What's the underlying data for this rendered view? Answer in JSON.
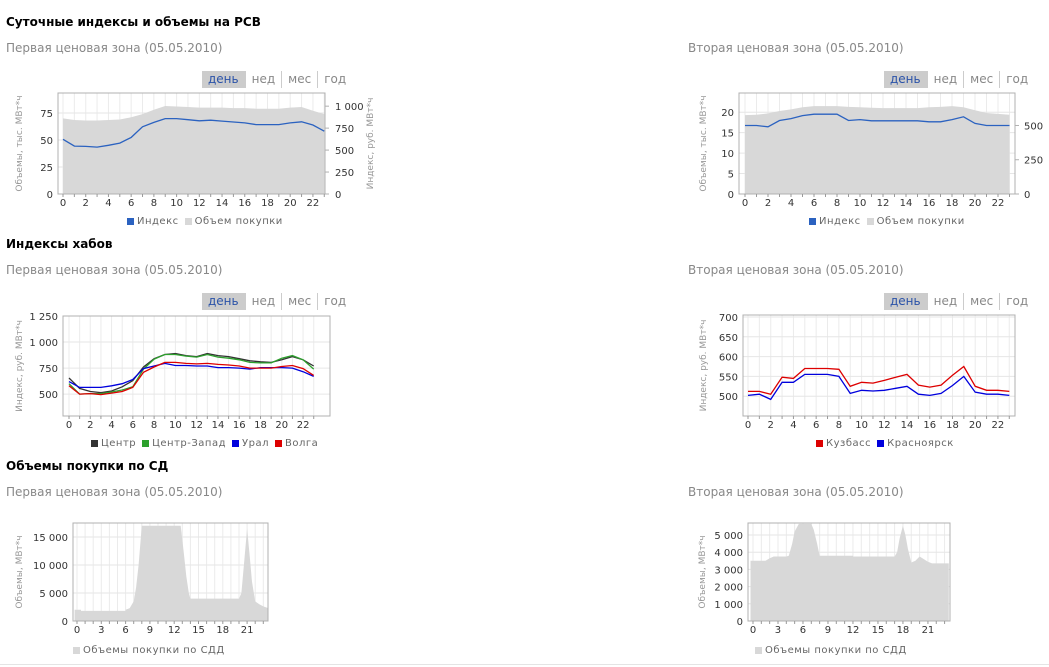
{
  "sections": [
    {
      "title": "Суточные индексы и объемы на РСВ"
    },
    {
      "title": "Индексы хабов"
    },
    {
      "title": "Объемы покупки по СД"
    }
  ],
  "zone1": "Первая ценовая зона (05.05.2010)",
  "zone2": "Вторая ценовая зона (05.05.2010)",
  "tabs": [
    "день",
    "нед",
    "мес",
    "год"
  ],
  "colors": {
    "volume": "#d8d8d8",
    "index": "#2b62c0",
    "center": "#333333",
    "nw": "#2ca02c",
    "ural": "#0000dd",
    "volga": "#dd0000",
    "kuzbass": "#dd0000",
    "krasnoyarsk": "#0000dd"
  },
  "chart_data": [
    {
      "type": "area+line",
      "title": "Первая ценовая зона (05.05.2010)",
      "ylabel": "Объемы, тыс. МВт*ч",
      "y2label": "Индекс, руб. МВт*ч",
      "ylim": [
        0,
        93.5
      ],
      "y2lim": [
        0,
        1150
      ],
      "yticks": [
        0,
        25,
        50,
        75
      ],
      "yticklabels": [
        "0",
        "25",
        "50",
        "75"
      ],
      "y2ticks": [
        0,
        250,
        500,
        750,
        1000
      ],
      "y2ticklabels": [
        "0",
        "250",
        "500",
        "750",
        "1 000"
      ],
      "xticks": [
        0,
        2,
        4,
        6,
        8,
        10,
        12,
        14,
        16,
        18,
        20,
        22
      ],
      "series": [
        {
          "name": "Объем покупки",
          "kind": "area",
          "axis": "y",
          "color": "#d8d8d8",
          "x": [
            0,
            1,
            2,
            3,
            4,
            5,
            6,
            7,
            8,
            9,
            10,
            11,
            12,
            13,
            14,
            15,
            16,
            17,
            18,
            19,
            20,
            21,
            22,
            23
          ],
          "values": [
            70,
            68.5,
            68,
            68,
            68.5,
            69,
            71,
            74,
            78,
            81.5,
            81,
            80.5,
            80,
            80,
            80,
            79.5,
            79.5,
            79,
            79,
            79,
            80,
            80.5,
            77,
            74
          ]
        },
        {
          "name": "Индекс",
          "kind": "line",
          "axis": "y2",
          "color": "#2b62c0",
          "x": [
            0,
            1,
            2,
            3,
            4,
            5,
            6,
            7,
            8,
            9,
            10,
            11,
            12,
            13,
            14,
            15,
            16,
            17,
            18,
            19,
            20,
            21,
            22,
            23
          ],
          "values": [
            623,
            545,
            542,
            534,
            555,
            580,
            644,
            765,
            815,
            858,
            858,
            846,
            833,
            840,
            830,
            820,
            810,
            790,
            790,
            790,
            810,
            822,
            786,
            715
          ]
        }
      ],
      "legend": [
        "Индекс",
        "Объем покупки"
      ]
    },
    {
      "type": "area+line",
      "title": "Вторая ценовая зона (05.05.2010)",
      "ylabel": "Объемы, тыс. МВт*ч",
      "ylim": [
        0,
        24.7
      ],
      "y2lim": [
        0,
        737
      ],
      "yticks": [
        0,
        5,
        10,
        15,
        20
      ],
      "yticklabels": [
        "0",
        "5",
        "10",
        "15",
        "20"
      ],
      "y2ticks": [
        0,
        250,
        500
      ],
      "y2ticklabels": [
        "0",
        "250",
        "500"
      ],
      "xticks": [
        0,
        2,
        4,
        6,
        8,
        10,
        12,
        14,
        16,
        18,
        20,
        22
      ],
      "series": [
        {
          "name": "Объем покупки",
          "kind": "area",
          "axis": "y",
          "color": "#d8d8d8",
          "x": [
            0,
            1,
            2,
            3,
            4,
            5,
            6,
            7,
            8,
            9,
            10,
            11,
            12,
            13,
            14,
            15,
            16,
            17,
            18,
            19,
            20,
            21,
            22,
            23
          ],
          "values": [
            19.3,
            19.4,
            19.7,
            20.3,
            20.7,
            21.2,
            21.5,
            21.5,
            21.5,
            21.3,
            21.2,
            21.1,
            21,
            21,
            21,
            21,
            21.2,
            21.3,
            21.5,
            21.2,
            20.5,
            19.8,
            19.6,
            19.4
          ]
        },
        {
          "name": "Индекс",
          "kind": "line",
          "axis": "y2",
          "color": "#2b62c0",
          "x": [
            0,
            1,
            2,
            3,
            4,
            5,
            6,
            7,
            8,
            9,
            10,
            11,
            12,
            13,
            14,
            15,
            16,
            17,
            18,
            19,
            20,
            21,
            22,
            23
          ],
          "values": [
            500,
            500,
            490,
            536,
            550,
            572,
            582,
            582,
            582,
            536,
            543,
            534,
            534,
            534,
            534,
            534,
            527,
            527,
            543,
            563,
            515,
            500,
            500,
            500
          ]
        }
      ],
      "legend": [
        "Индекс",
        "Объем покупки"
      ]
    },
    {
      "type": "line",
      "title": "Первая ценовая зона (05.05.2010)",
      "ylabel": "Индекс, руб. МВт*ч",
      "ylim": [
        290,
        1250
      ],
      "yticks": [
        500,
        750,
        1000,
        1250
      ],
      "yticklabels": [
        "500",
        "750",
        "1 000",
        "1 250"
      ],
      "xticks": [
        0,
        2,
        4,
        6,
        8,
        10,
        12,
        14,
        16,
        18,
        20,
        22
      ],
      "series": [
        {
          "name": "Центр",
          "kind": "line",
          "color": "#333333",
          "x": [
            0,
            1,
            2,
            3,
            4,
            5,
            6,
            7,
            8,
            9,
            10,
            11,
            12,
            13,
            14,
            15,
            16,
            17,
            18,
            19,
            20,
            21,
            22,
            23
          ],
          "values": [
            655,
            555,
            525,
            515,
            530,
            570,
            630,
            760,
            840,
            880,
            890,
            870,
            860,
            890,
            870,
            860,
            840,
            820,
            810,
            805,
            830,
            860,
            830,
            770
          ]
        },
        {
          "name": "Центр-Запад",
          "kind": "line",
          "color": "#2ca02c",
          "x": [
            0,
            1,
            2,
            3,
            4,
            5,
            6,
            7,
            8,
            9,
            10,
            11,
            12,
            13,
            14,
            15,
            16,
            17,
            18,
            19,
            20,
            21,
            22,
            23
          ],
          "values": [
            600,
            500,
            505,
            505,
            520,
            540,
            570,
            740,
            835,
            880,
            880,
            865,
            855,
            880,
            855,
            845,
            830,
            805,
            800,
            800,
            845,
            870,
            830,
            740
          ]
        },
        {
          "name": "Урал",
          "kind": "line",
          "color": "#0000dd",
          "x": [
            0,
            1,
            2,
            3,
            4,
            5,
            6,
            7,
            8,
            9,
            10,
            11,
            12,
            13,
            14,
            15,
            16,
            17,
            18,
            19,
            20,
            21,
            22,
            23
          ],
          "values": [
            620,
            565,
            565,
            565,
            580,
            600,
            640,
            745,
            770,
            795,
            775,
            775,
            770,
            770,
            755,
            755,
            750,
            740,
            755,
            755,
            755,
            750,
            715,
            670
          ]
        },
        {
          "name": "Волга",
          "kind": "line",
          "color": "#dd0000",
          "x": [
            0,
            1,
            2,
            3,
            4,
            5,
            6,
            7,
            8,
            9,
            10,
            11,
            12,
            13,
            14,
            15,
            16,
            17,
            18,
            19,
            20,
            21,
            22,
            23
          ],
          "values": [
            580,
            500,
            505,
            495,
            510,
            525,
            565,
            710,
            760,
            805,
            805,
            795,
            790,
            795,
            785,
            780,
            770,
            750,
            750,
            750,
            765,
            775,
            745,
            680
          ]
        }
      ],
      "legend": [
        "Центр",
        "Центр-Запад",
        "Урал",
        "Волга"
      ]
    },
    {
      "type": "line",
      "title": "Вторая ценовая зона (05.05.2010)",
      "ylabel": "Индекс, руб. МВт*ч",
      "ylim": [
        450,
        705
      ],
      "yticks": [
        500,
        550,
        600,
        650,
        700
      ],
      "yticklabels": [
        "500",
        "550",
        "600",
        "650",
        "700"
      ],
      "xticks": [
        0,
        2,
        4,
        6,
        8,
        10,
        12,
        14,
        16,
        18,
        20,
        22
      ],
      "series": [
        {
          "name": "Кузбасс",
          "kind": "line",
          "color": "#dd0000",
          "x": [
            0,
            1,
            2,
            3,
            4,
            5,
            6,
            7,
            8,
            9,
            10,
            11,
            12,
            13,
            14,
            15,
            16,
            17,
            18,
            19,
            20,
            21,
            22,
            23
          ],
          "values": [
            512,
            512,
            505,
            548,
            545,
            570,
            570,
            570,
            568,
            525,
            535,
            533,
            540,
            548,
            555,
            528,
            523,
            528,
            553,
            575,
            525,
            515,
            515,
            512
          ]
        },
        {
          "name": "Красноярск",
          "kind": "line",
          "color": "#0000dd",
          "x": [
            0,
            1,
            2,
            3,
            4,
            5,
            6,
            7,
            8,
            9,
            10,
            11,
            12,
            13,
            14,
            15,
            16,
            17,
            18,
            19,
            20,
            21,
            22,
            23
          ],
          "values": [
            502,
            505,
            492,
            535,
            535,
            555,
            555,
            555,
            550,
            507,
            515,
            513,
            515,
            520,
            525,
            505,
            502,
            507,
            527,
            550,
            510,
            505,
            505,
            502
          ]
        }
      ],
      "legend": [
        "Кузбасс",
        "Красноярск"
      ]
    },
    {
      "type": "area",
      "title": "Первая ценовая зона (05.05.2010)",
      "ylabel": "Объемы, МВт*ч",
      "ylim": [
        0,
        17500
      ],
      "yticks": [
        0,
        5000,
        10000,
        15000
      ],
      "yticklabels": [
        "0",
        "5 000",
        "10 000",
        "15 000"
      ],
      "xticks": [
        0,
        3,
        6,
        9,
        12,
        15,
        18,
        21
      ],
      "series": [
        {
          "name": "Объемы покупки по СДД",
          "kind": "area",
          "color": "#d8d8d8",
          "x": [
            -0.3,
            0.5,
            0.5,
            6,
            6,
            6.5,
            7,
            7.3,
            7.6,
            8,
            12.8,
            13.2,
            13.5,
            13.8,
            14,
            20,
            20.3,
            20.6,
            21,
            21.3,
            21.6,
            22,
            22.5,
            23,
            23.6
          ],
          "values": [
            2000,
            2000,
            1800,
            1800,
            2000,
            2300,
            3500,
            6000,
            10000,
            17000,
            17000,
            12000,
            8000,
            5000,
            4000,
            4000,
            5000,
            10000,
            16500,
            12000,
            7000,
            3500,
            3000,
            2600,
            2300
          ]
        }
      ],
      "legend": [
        "Объемы покупки по СДД"
      ]
    },
    {
      "type": "area",
      "title": "Вторая ценовая зона (05.05.2010)",
      "ylabel": "Объемы, МВт*ч",
      "ylim": [
        0,
        5700
      ],
      "yticks": [
        0,
        1000,
        2000,
        3000,
        4000,
        5000
      ],
      "yticklabels": [
        "0",
        "1 000",
        "2 000",
        "3 000",
        "4 000",
        "5 000"
      ],
      "xticks": [
        0,
        3,
        6,
        9,
        12,
        15,
        18,
        21
      ],
      "series": [
        {
          "name": "Объемы покупки по СДД",
          "kind": "area",
          "color": "#d8d8d8",
          "x": [
            -0.3,
            1.5,
            2,
            2.5,
            4,
            4.3,
            4.7,
            5,
            5.5,
            7,
            7.3,
            7.7,
            8,
            12,
            12,
            17,
            17.3,
            17.6,
            18,
            18.3,
            18.6,
            19,
            19.5,
            20,
            20.5,
            21,
            21.5,
            23.5
          ],
          "values": [
            3500,
            3500,
            3650,
            3750,
            3750,
            3800,
            4500,
            5200,
            5650,
            5650,
            5300,
            4500,
            3800,
            3800,
            3750,
            3750,
            4000,
            4800,
            5550,
            5000,
            4200,
            3400,
            3500,
            3750,
            3600,
            3450,
            3350,
            3350
          ]
        }
      ],
      "legend": [
        "Объемы покупки по СДД"
      ]
    }
  ]
}
